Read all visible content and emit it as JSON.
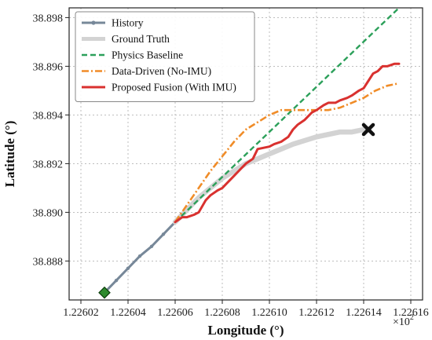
{
  "chart_data": {
    "type": "line",
    "title": "",
    "xlabel": "Longitude (°)",
    "ylabel": "Latitude (°)",
    "x_offset_label": "×10",
    "x_offset_exponent": "2",
    "xlim": [
      1.226015,
      1.226165
    ],
    "ylim": [
      38.8864,
      38.8984
    ],
    "xticks": [
      1.22602,
      1.22604,
      1.22606,
      1.22608,
      1.2261,
      1.22612,
      1.22614,
      1.22616
    ],
    "xtick_labels": [
      "1.22602",
      "1.22604",
      "1.22606",
      "1.22608",
      "1.22610",
      "1.22612",
      "1.22614",
      "1.22616"
    ],
    "yticks": [
      38.888,
      38.89,
      38.892,
      38.894,
      38.896,
      38.898
    ],
    "ytick_labels": [
      "38.888",
      "38.890",
      "38.892",
      "38.894",
      "38.896",
      "38.898"
    ],
    "grid": true,
    "legend_position": "top-left",
    "series": [
      {
        "name": "History",
        "color": "#778899",
        "style": "solid-markers",
        "x": [
          1.22603,
          1.226035,
          1.22604,
          1.226045,
          1.22605,
          1.226055,
          1.22606
        ],
        "y": [
          38.8867,
          38.8872,
          38.8877,
          38.8882,
          38.8886,
          38.8891,
          38.8896
        ]
      },
      {
        "name": "Ground Truth",
        "color": "#d3d3d3",
        "style": "thick",
        "x": [
          1.22606,
          1.226065,
          1.22607,
          1.226075,
          1.22608,
          1.226085,
          1.22609,
          1.226095,
          1.2261,
          1.22611,
          1.22612,
          1.22613,
          1.226135,
          1.22614,
          1.226142
        ],
        "y": [
          38.8896,
          38.8901,
          38.8906,
          38.891,
          38.8914,
          38.8917,
          38.892,
          38.8922,
          38.8924,
          38.8928,
          38.8931,
          38.8933,
          38.8933,
          38.8934,
          38.8934
        ]
      },
      {
        "name": "Physics Baseline",
        "color": "#2ca05a",
        "style": "dashed",
        "x": [
          1.22606,
          1.226155
        ],
        "y": [
          38.8896,
          38.8984
        ]
      },
      {
        "name": "Data-Driven (No-IMU)",
        "color": "#f08c28",
        "style": "dashdot",
        "x": [
          1.22606,
          1.226065,
          1.22607,
          1.226075,
          1.22608,
          1.226085,
          1.22609,
          1.226095,
          1.2261,
          1.226105,
          1.22611,
          1.226115,
          1.22612,
          1.226125,
          1.22613,
          1.226135,
          1.22614,
          1.226145,
          1.22615,
          1.226155
        ],
        "y": [
          38.8896,
          38.8903,
          38.891,
          38.8917,
          38.8923,
          38.8929,
          38.8934,
          38.8937,
          38.894,
          38.8942,
          38.8942,
          38.8942,
          38.8942,
          38.8942,
          38.8943,
          38.8945,
          38.8947,
          38.895,
          38.8952,
          38.8953
        ]
      },
      {
        "name": "Proposed Fusion (With IMU)",
        "color": "#d9312f",
        "style": "solid-thick",
        "x": [
          1.22606,
          1.226063,
          1.226065,
          1.226068,
          1.22607,
          1.226073,
          1.226075,
          1.226078,
          1.22608,
          1.226082,
          1.226085,
          1.226088,
          1.22609,
          1.226093,
          1.226095,
          1.2261,
          1.226102,
          1.226105,
          1.226108,
          1.22611,
          1.226112,
          1.226115,
          1.226118,
          1.22612,
          1.226123,
          1.226125,
          1.226128,
          1.22613,
          1.226133,
          1.226135,
          1.226138,
          1.22614,
          1.226142,
          1.226144,
          1.226146,
          1.226148,
          1.22615,
          1.226153,
          1.226155
        ],
        "y": [
          38.8896,
          38.8898,
          38.8898,
          38.8899,
          38.89,
          38.8905,
          38.8907,
          38.8909,
          38.891,
          38.8912,
          38.8915,
          38.8918,
          38.892,
          38.8922,
          38.8926,
          38.8927,
          38.8928,
          38.8929,
          38.8931,
          38.8934,
          38.8936,
          38.8938,
          38.8941,
          38.8942,
          38.8944,
          38.8945,
          38.8945,
          38.8946,
          38.8947,
          38.8948,
          38.895,
          38.8951,
          38.8954,
          38.8957,
          38.8958,
          38.896,
          38.896,
          38.8961,
          38.8961
        ]
      }
    ],
    "markers": [
      {
        "label": "start",
        "shape": "diamond",
        "color": "#2e8b2e",
        "x": 1.22603,
        "y": 38.8867
      },
      {
        "label": "end",
        "shape": "x",
        "color": "#111111",
        "x": 1.226142,
        "y": 38.8934
      }
    ]
  }
}
